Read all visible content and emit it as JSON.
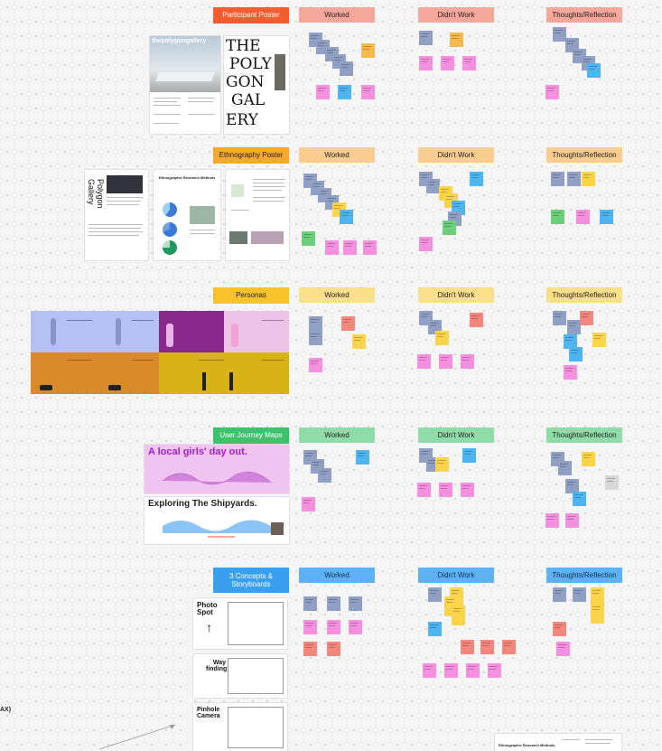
{
  "rows": [
    {
      "label": "Participant Poster",
      "color": "#f25c2e",
      "text_color": "light"
    },
    {
      "label": "Ethnography Poster",
      "color": "#f6a832",
      "text_color": "dark"
    },
    {
      "label": "Personas",
      "color": "#f8c22d",
      "text_color": "dark"
    },
    {
      "label": "User Journey Maps",
      "color": "#3ec26b",
      "text_color": "light"
    },
    {
      "label": "3 Concepts & Storyboards",
      "color": "#3b9ff0",
      "text_color": "light"
    }
  ],
  "columns": [
    {
      "worked": "Worked",
      "didnt": "Didn't Work",
      "thoughts": "Thoughts/Reflection",
      "color": "#f5a79b"
    },
    {
      "worked": "Worked",
      "didnt": "Didn't Work",
      "thoughts": "Thoughts/Reflection",
      "color": "#f9cd8f"
    },
    {
      "worked": "Worked",
      "didnt": "Didn't Work",
      "thoughts": "Thoughts/Reflection",
      "color": "#fbe08a"
    },
    {
      "worked": "Worked",
      "didnt": "Didn't Work",
      "thoughts": "Thoughts/Reflection",
      "color": "#8fdca8"
    },
    {
      "worked": "Worked",
      "didnt": "Didn't Work",
      "thoughts": "Thoughts/Reflection",
      "color": "#5db2f3"
    }
  ],
  "thumbnails": {
    "polygon_logo": "thepolygongallery",
    "poly_big": [
      "THE",
      "POLY",
      "GON",
      "GAL",
      "ERY"
    ],
    "ethno_vertical": "Polygon Gallery",
    "ethno_heading": "Ethnographic Research Methods",
    "journey_1": "A local girls' day out.",
    "journey_2": "Exploring The Shipyards.",
    "concept_1": "Photo Spot",
    "concept_2": "Way finding",
    "concept_3": "Pinhole Camera",
    "bottom_heading": "Ethnographic Research Methods"
  },
  "edge_label": "AX)"
}
